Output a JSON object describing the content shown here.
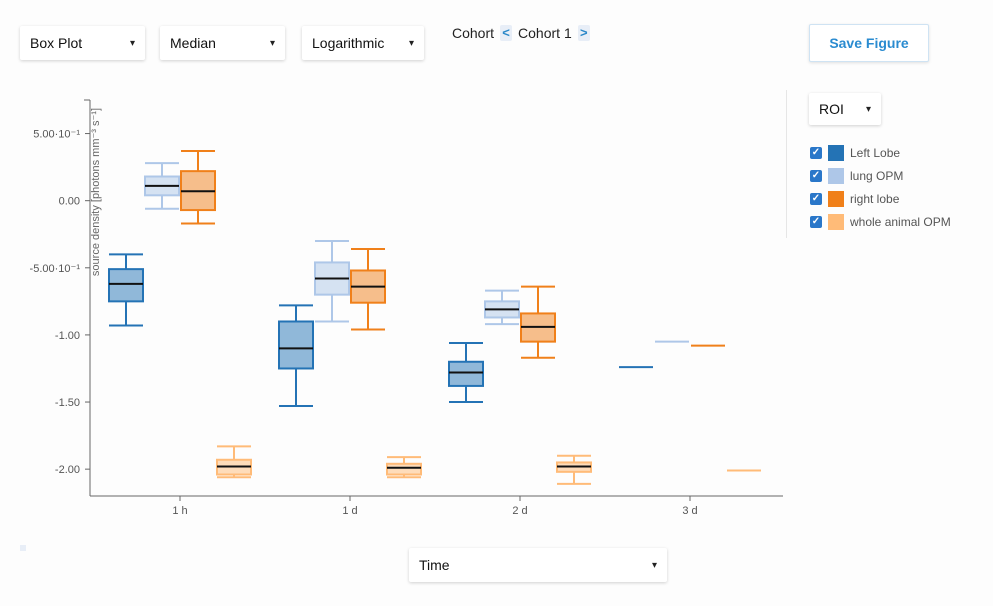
{
  "controls": {
    "plot_type": "Box Plot",
    "statistic": "Median",
    "scale": "Logarithmic",
    "cohort_label": "Cohort",
    "cohort_prev": "<",
    "cohort_value": "Cohort 1",
    "cohort_next": ">",
    "save_label": "Save Figure",
    "roi_select": "ROI",
    "x_select": "Time",
    "caret": "▾",
    "check": "✓"
  },
  "colors": {
    "Left Lobe": "#2473b5",
    "lung OPM": "#aec7e8",
    "right lobe": "#f0801a",
    "whole animal OPM": "#ffbb78"
  },
  "chart_data": {
    "type": "box",
    "ylabel": "source density [photons mm⁻³ s⁻¹]",
    "ylim": [
      -2.2,
      0.75
    ],
    "yticks": [
      {
        "value": 0.5,
        "label": "5.00·10⁻¹"
      },
      {
        "value": 0.0,
        "label": "0.00"
      },
      {
        "value": -0.5,
        "label": "-5.00·10⁻¹"
      },
      {
        "value": -1.0,
        "label": "-1.00"
      },
      {
        "value": -1.5,
        "label": "-1.50"
      },
      {
        "value": -2.0,
        "label": "-2.00"
      }
    ],
    "categories": [
      "1 h",
      "1 d",
      "2 d",
      "3 d"
    ],
    "series": [
      {
        "name": "Left Lobe",
        "boxes": [
          {
            "min": -0.93,
            "q1": -0.75,
            "median": -0.62,
            "q3": -0.51,
            "max": -0.4
          },
          {
            "min": -1.53,
            "q1": -1.25,
            "median": -1.1,
            "q3": -0.9,
            "max": -0.78
          },
          {
            "min": -1.5,
            "q1": -1.38,
            "median": -1.28,
            "q3": -1.2,
            "max": -1.06
          },
          {
            "min": -1.24,
            "q1": -1.24,
            "median": -1.24,
            "q3": -1.24,
            "max": -1.24
          }
        ]
      },
      {
        "name": "lung OPM",
        "boxes": [
          {
            "min": -0.06,
            "q1": 0.04,
            "median": 0.11,
            "q3": 0.18,
            "max": 0.28
          },
          {
            "min": -0.9,
            "q1": -0.7,
            "median": -0.58,
            "q3": -0.46,
            "max": -0.3
          },
          {
            "min": -0.92,
            "q1": -0.87,
            "median": -0.81,
            "q3": -0.75,
            "max": -0.67
          },
          {
            "min": -1.05,
            "q1": -1.05,
            "median": -1.05,
            "q3": -1.05,
            "max": -1.05
          }
        ]
      },
      {
        "name": "right lobe",
        "boxes": [
          {
            "min": -0.17,
            "q1": -0.07,
            "median": 0.07,
            "q3": 0.22,
            "max": 0.37
          },
          {
            "min": -0.96,
            "q1": -0.76,
            "median": -0.64,
            "q3": -0.52,
            "max": -0.36
          },
          {
            "min": -1.17,
            "q1": -1.05,
            "median": -0.94,
            "q3": -0.84,
            "max": -0.64
          },
          {
            "min": -1.08,
            "q1": -1.08,
            "median": -1.08,
            "q3": -1.08,
            "max": -1.08
          }
        ]
      },
      {
        "name": "whole animal OPM",
        "boxes": [
          {
            "min": -2.06,
            "q1": -2.04,
            "median": -1.98,
            "q3": -1.93,
            "max": -1.83
          },
          {
            "min": -2.06,
            "q1": -2.04,
            "median": -1.99,
            "q3": -1.96,
            "max": -1.91
          },
          {
            "min": -2.11,
            "q1": -2.02,
            "median": -1.98,
            "q3": -1.95,
            "max": -1.9
          },
          {
            "min": -2.01,
            "q1": -2.01,
            "median": -2.01,
            "q3": -2.01,
            "max": -2.01
          }
        ]
      }
    ],
    "legend": [
      "Left Lobe",
      "lung OPM",
      "right lobe",
      "whole animal OPM"
    ],
    "legend_position": "right",
    "grid": false
  }
}
